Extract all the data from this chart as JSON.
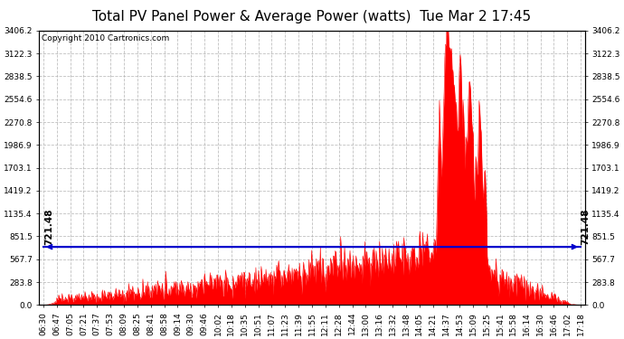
{
  "title": "Total PV Panel Power & Average Power (watts)  Tue Mar 2 17:45",
  "copyright": "Copyright 2010 Cartronics.com",
  "avg_power": 721.48,
  "y_max": 3406.2,
  "y_ticks": [
    0.0,
    283.8,
    567.7,
    851.5,
    1135.4,
    1419.2,
    1703.1,
    1986.9,
    2270.8,
    2554.6,
    2838.5,
    3122.3,
    3406.2
  ],
  "x_tick_labels": [
    "06:30",
    "06:47",
    "07:05",
    "07:21",
    "07:37",
    "07:53",
    "08:09",
    "08:25",
    "08:41",
    "08:58",
    "09:14",
    "09:30",
    "09:46",
    "10:02",
    "10:18",
    "10:35",
    "10:51",
    "11:07",
    "11:23",
    "11:39",
    "11:55",
    "12:11",
    "12:28",
    "12:44",
    "13:00",
    "13:16",
    "13:32",
    "13:48",
    "14:05",
    "14:21",
    "14:37",
    "14:53",
    "15:09",
    "15:25",
    "15:41",
    "15:58",
    "16:14",
    "16:30",
    "16:46",
    "17:02",
    "17:18"
  ],
  "background_color": "#ffffff",
  "plot_bg_color": "#ffffff",
  "grid_color": "#b0b0b0",
  "fill_color": "#ff0000",
  "avg_line_color": "#0000cc",
  "title_fontsize": 11,
  "tick_fontsize": 6.5,
  "avg_label_fontsize": 7.5,
  "copyright_fontsize": 6.5,
  "n_points": 800
}
